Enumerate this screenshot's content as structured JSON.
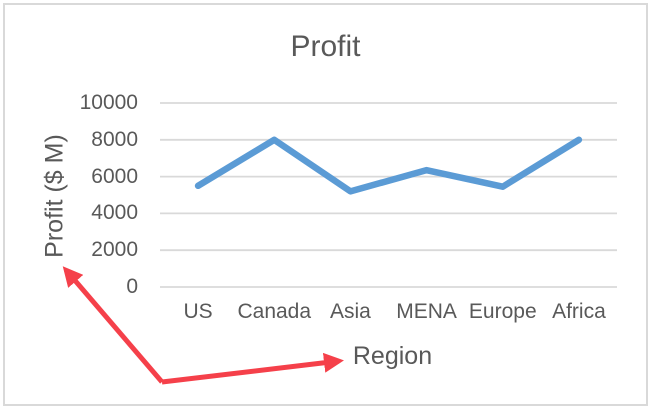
{
  "frame": {
    "background_color": "#ffffff",
    "border_color": "#d9d9d9"
  },
  "chart_data": {
    "type": "line",
    "title": "Profit",
    "xlabel": "Region",
    "ylabel": "Profit ($ M)",
    "categories": [
      "US",
      "Canada",
      "Asia",
      "MENA",
      "Europe",
      "Africa"
    ],
    "series": [
      {
        "name": "Profit",
        "values": [
          5500,
          8000,
          5200,
          6350,
          5450,
          8000
        ],
        "color": "#5b9bd5",
        "line_width": 6.5
      }
    ],
    "yticks": [
      0,
      2000,
      4000,
      6000,
      8000,
      10000
    ],
    "ylim": [
      0,
      10000
    ],
    "grid": true,
    "gridline_color": "#d9d9d9",
    "text_color": "#595959",
    "legend_position": "none",
    "markers": "none"
  },
  "annotations": {
    "color": "#f5404a",
    "line_width": 5,
    "arrows": [
      {
        "name": "arrow-to-y-axis-title",
        "from": [
          162,
          382
        ],
        "to": [
          66,
          270
        ]
      },
      {
        "name": "arrow-to-x-axis-title",
        "from": [
          162,
          382
        ],
        "to": [
          339,
          361
        ]
      }
    ]
  }
}
